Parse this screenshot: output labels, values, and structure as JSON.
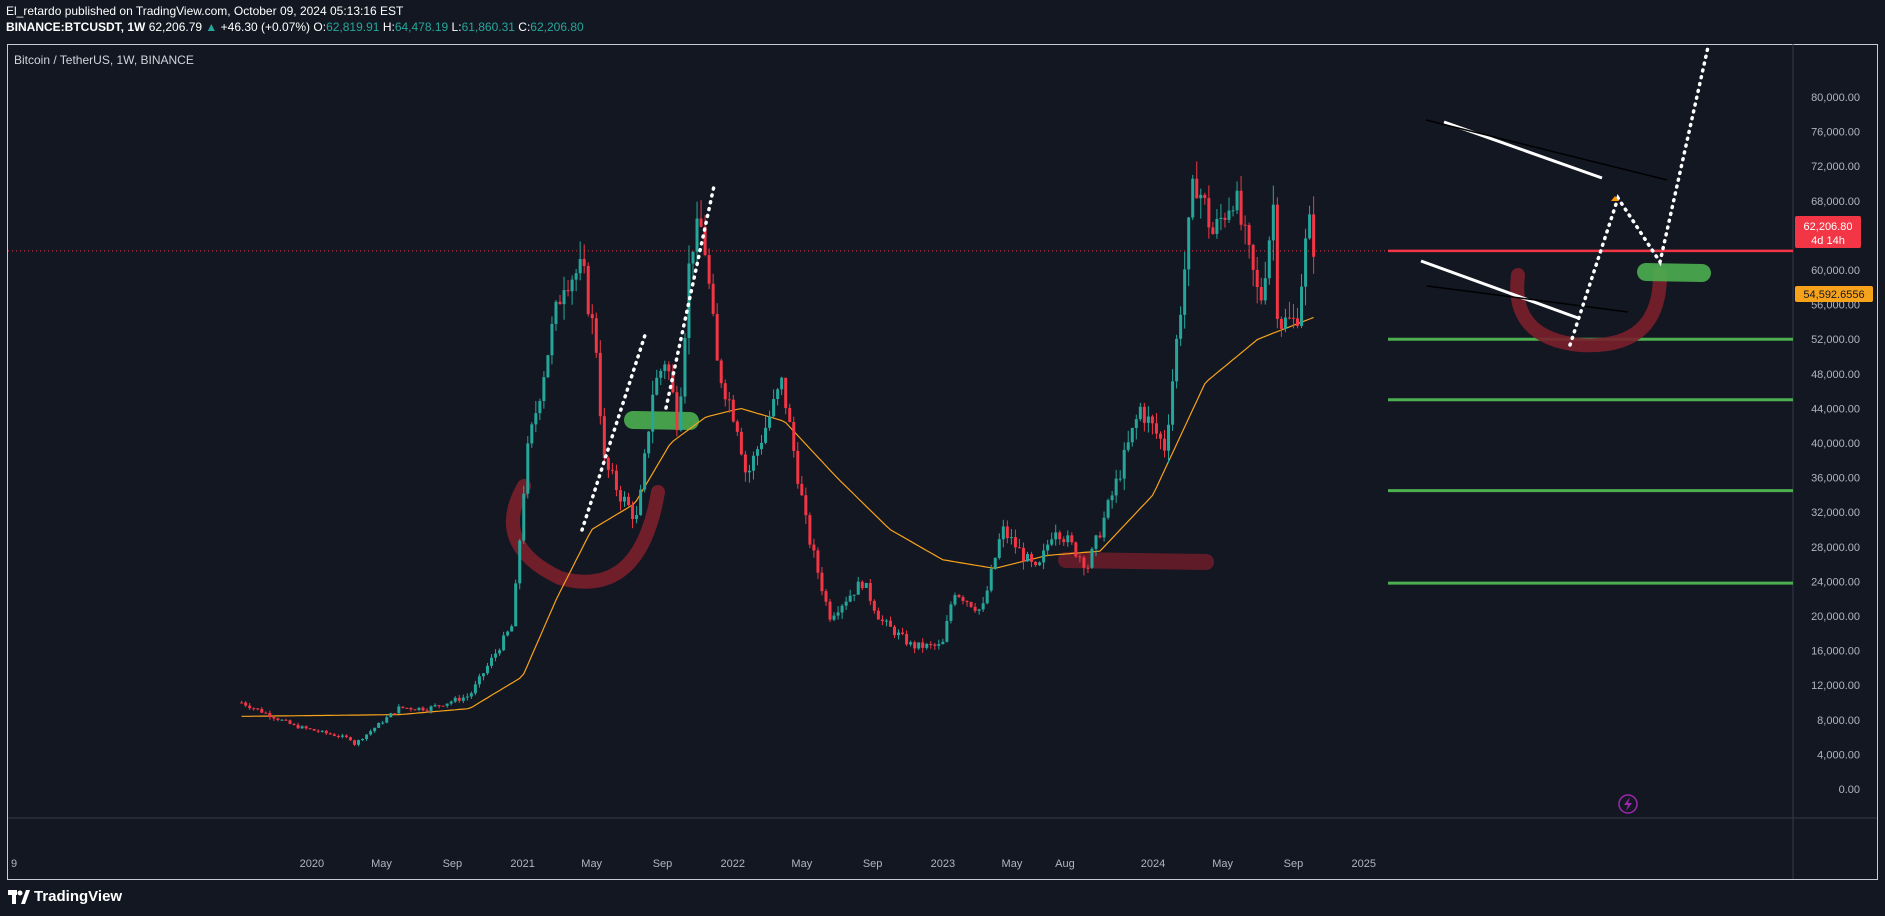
{
  "header": {
    "publisher_line": "El_retardo published on TradingView.com, October 09, 2024 05:13:16 EST",
    "symbol": "BINANCE:BTCUSDT, 1W",
    "last": "62,206.79",
    "change": "+46.30 (+0.07%)",
    "o_label": "O:",
    "o": "62,819.91",
    "h_label": "H:",
    "h": "64,478.19",
    "l_label": "L:",
    "l": "61,860.31",
    "c_label": "C:",
    "c": "62,206.80"
  },
  "chart_title": "Bitcoin / TetherUS, 1W, BINANCE",
  "price_badge": {
    "value": "62,206.80",
    "countdown": "4d 14h",
    "color": "#f23645"
  },
  "ma_badge": {
    "value": "54,592.6556",
    "color": "#f7a21b"
  },
  "footer": {
    "brand": "TradingView"
  },
  "chart_data": {
    "type": "candlestick",
    "title": "Bitcoin / TetherUS, 1W, BINANCE",
    "y_ticks": [
      "80,000.00",
      "76,000.00",
      "72,000.00",
      "68,000.00",
      "64,000.00",
      "60,000.00",
      "56,000.00",
      "52,000.00",
      "48,000.00",
      "44,000.00",
      "40,000.00",
      "36,000.00",
      "32,000.00",
      "28,000.00",
      "24,000.00",
      "20,000.00",
      "16,000.00",
      "12,000.00",
      "8,000.00",
      "4,000.00",
      "0.00"
    ],
    "x_ticks": [
      "9",
      "2020",
      "May",
      "Sep",
      "2021",
      "May",
      "Sep",
      "2022",
      "May",
      "Sep",
      "2023",
      "May",
      "Aug",
      "2024",
      "May",
      "Sep",
      "2025"
    ],
    "colors": {
      "up": "#26a69a",
      "down": "#f23645",
      "ma": "#f7a21b",
      "level": "#4caf50",
      "price_line": "#f23645",
      "annotation_red": "#7a1f2b",
      "annotation_green": "#4caf50",
      "channel": "#ffffff"
    },
    "anchors": [
      [
        "2019-09-01",
        10000
      ],
      [
        "2019-12-01",
        7300
      ],
      [
        "2020-03-08",
        5800
      ],
      [
        "2020-03-15",
        5200
      ],
      [
        "2020-06-01",
        9400
      ],
      [
        "2020-07-20",
        9300
      ],
      [
        "2020-10-01",
        10800
      ],
      [
        "2020-12-15",
        19000
      ],
      [
        "2021-01-07",
        38000
      ],
      [
        "2021-02-21",
        53000
      ],
      [
        "2021-03-14",
        59000
      ],
      [
        "2021-04-15",
        60000
      ],
      [
        "2021-05-12",
        50000
      ],
      [
        "2021-05-20",
        38000
      ],
      [
        "2021-06-20",
        34000
      ],
      [
        "2021-07-20",
        31000
      ],
      [
        "2021-08-15",
        46000
      ],
      [
        "2021-09-07",
        50000
      ],
      [
        "2021-09-28",
        42000
      ],
      [
        "2021-10-20",
        63000
      ],
      [
        "2021-11-10",
        65000
      ],
      [
        "2021-12-05",
        49000
      ],
      [
        "2022-01-10",
        42000
      ],
      [
        "2022-01-25",
        36000
      ],
      [
        "2022-03-28",
        47000
      ],
      [
        "2022-05-10",
        30000
      ],
      [
        "2022-06-18",
        20000
      ],
      [
        "2022-08-15",
        24000
      ],
      [
        "2022-09-15",
        19500
      ],
      [
        "2022-11-09",
        16500
      ],
      [
        "2022-12-31",
        16500
      ],
      [
        "2023-01-20",
        23000
      ],
      [
        "2023-03-10",
        20500
      ],
      [
        "2023-04-14",
        30000
      ],
      [
        "2023-06-14",
        25000
      ],
      [
        "2023-07-14",
        30500
      ],
      [
        "2023-09-10",
        25800
      ],
      [
        "2023-10-25",
        34500
      ],
      [
        "2023-12-10",
        44000
      ],
      [
        "2024-01-22",
        39500
      ],
      [
        "2024-02-28",
        62000
      ],
      [
        "2024-03-14",
        71000
      ],
      [
        "2024-04-15",
        64000
      ],
      [
        "2024-05-20",
        69000
      ],
      [
        "2024-07-05",
        56000
      ],
      [
        "2024-07-29",
        68000
      ],
      [
        "2024-08-05",
        54000
      ],
      [
        "2024-09-06",
        54000
      ],
      [
        "2024-09-27",
        65500
      ],
      [
        "2024-10-09",
        62206.8
      ]
    ],
    "ma_anchors": [
      [
        "2019-09-01",
        8400
      ],
      [
        "2020-06-01",
        8600
      ],
      [
        "2020-10-01",
        9300
      ],
      [
        "2021-01-01",
        13000
      ],
      [
        "2021-03-01",
        22000
      ],
      [
        "2021-05-01",
        30000
      ],
      [
        "2021-07-15",
        33000
      ],
      [
        "2021-09-15",
        40000
      ],
      [
        "2021-11-15",
        43000
      ],
      [
        "2022-01-15",
        44000
      ],
      [
        "2022-04-01",
        42500
      ],
      [
        "2022-07-01",
        36000
      ],
      [
        "2022-10-01",
        30000
      ],
      [
        "2023-01-01",
        26500
      ],
      [
        "2023-04-01",
        25500
      ],
      [
        "2023-07-01",
        27000
      ],
      [
        "2023-10-01",
        27500
      ],
      [
        "2024-01-01",
        34000
      ],
      [
        "2024-04-01",
        47000
      ],
      [
        "2024-07-01",
        52000
      ],
      [
        "2024-10-09",
        54592.66
      ]
    ],
    "levels": [
      52000,
      45000,
      34500,
      23800
    ],
    "current_price": 62206.8,
    "projection": [
      [
        "2024-08-05",
        49500
      ],
      [
        "2024-09-27",
        65500
      ],
      [
        "2024-11-05",
        57000
      ],
      [
        "2025-01-05",
        83000
      ]
    ]
  }
}
